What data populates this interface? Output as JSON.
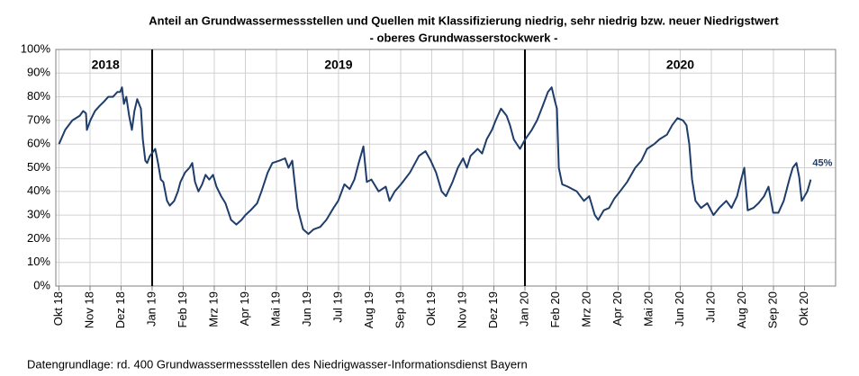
{
  "chart_data": {
    "type": "line",
    "title": "Anteil an Grundwassermessstellen und Quellen mit Klassifizierung niedrig, sehr niedrig bzw. neuer Niedrigstwert",
    "subtitle": "- oberes Grundwasserstockwerk -",
    "source": "Datengrundlage:  rd. 400 Grundwassermessstellen  des Niedrigwasser-Informationsdienst  Bayern",
    "grid": true,
    "xlim": [
      -0.1,
      25
    ],
    "ylim": [
      0,
      100
    ],
    "xticks": [
      {
        "value": 0,
        "label": "Okt 18"
      },
      {
        "value": 1,
        "label": "Nov 18"
      },
      {
        "value": 2,
        "label": "Dez 18"
      },
      {
        "value": 3,
        "label": "Jan 19"
      },
      {
        "value": 4,
        "label": "Feb 19"
      },
      {
        "value": 5,
        "label": "Mrz 19"
      },
      {
        "value": 6,
        "label": "Apr 19"
      },
      {
        "value": 7,
        "label": "Mai 19"
      },
      {
        "value": 8,
        "label": "Jun 19"
      },
      {
        "value": 9,
        "label": "Jul 19"
      },
      {
        "value": 10,
        "label": "Aug 19"
      },
      {
        "value": 11,
        "label": "Sep 19"
      },
      {
        "value": 12,
        "label": "Okt 19"
      },
      {
        "value": 13,
        "label": "Nov 19"
      },
      {
        "value": 14,
        "label": "Dez 19"
      },
      {
        "value": 15,
        "label": "Jan 20"
      },
      {
        "value": 16,
        "label": "Feb 20"
      },
      {
        "value": 17,
        "label": "Mrz 20"
      },
      {
        "value": 18,
        "label": "Apr 20"
      },
      {
        "value": 19,
        "label": "Mai 20"
      },
      {
        "value": 20,
        "label": "Jun 20"
      },
      {
        "value": 21,
        "label": "Jul 20"
      },
      {
        "value": 22,
        "label": "Aug 20"
      },
      {
        "value": 23,
        "label": "Sep 20"
      },
      {
        "value": 24,
        "label": "Okt 20"
      }
    ],
    "yticks": [
      {
        "value": 0,
        "label": "0%"
      },
      {
        "value": 10,
        "label": "10%"
      },
      {
        "value": 20,
        "label": "20%"
      },
      {
        "value": 30,
        "label": "30%"
      },
      {
        "value": 40,
        "label": "40%"
      },
      {
        "value": 50,
        "label": "50%"
      },
      {
        "value": 60,
        "label": "60%"
      },
      {
        "value": 70,
        "label": "70%"
      },
      {
        "value": 80,
        "label": "80%"
      },
      {
        "value": 90,
        "label": "90%"
      },
      {
        "value": 100,
        "label": "100%"
      }
    ],
    "year_dividers": [
      3,
      15
    ],
    "year_labels": [
      {
        "text": "2018",
        "x": 1.5
      },
      {
        "text": "2019",
        "x": 9
      },
      {
        "text": "2020",
        "x": 20
      }
    ],
    "end_label": "45%",
    "x": [
      0,
      0.2,
      0.43,
      0.67,
      0.78,
      0.87,
      0.9,
      1.01,
      1.16,
      1.3,
      1.45,
      1.59,
      1.74,
      1.88,
      1.97,
      2.03,
      2.09,
      2.17,
      2.26,
      2.35,
      2.43,
      2.52,
      2.64,
      2.7,
      2.78,
      2.84,
      2.93,
      3.1,
      3.19,
      3.28,
      3.36,
      3.48,
      3.57,
      3.71,
      3.83,
      3.91,
      4.06,
      4.2,
      4.29,
      4.38,
      4.49,
      4.61,
      4.72,
      4.84,
      4.96,
      5.07,
      5.22,
      5.36,
      5.54,
      5.71,
      5.88,
      6.0,
      6.17,
      6.38,
      6.52,
      6.72,
      6.87,
      7.1,
      7.28,
      7.39,
      7.51,
      7.57,
      7.68,
      7.86,
      8.03,
      8.2,
      8.41,
      8.61,
      8.84,
      8.99,
      9.19,
      9.36,
      9.51,
      9.65,
      9.8,
      9.91,
      10.06,
      10.29,
      10.52,
      10.64,
      10.81,
      11.01,
      11.3,
      11.59,
      11.8,
      11.97,
      12.14,
      12.32,
      12.46,
      12.67,
      12.84,
      13.01,
      13.13,
      13.25,
      13.48,
      13.62,
      13.77,
      13.94,
      14.06,
      14.23,
      14.41,
      14.52,
      14.64,
      14.84,
      15.01,
      15.22,
      15.39,
      15.57,
      15.74,
      15.86,
      15.97,
      16.03,
      16.09,
      16.2,
      16.38,
      16.67,
      16.9,
      17.07,
      17.25,
      17.36,
      17.54,
      17.71,
      17.88,
      18.06,
      18.29,
      18.55,
      18.75,
      18.93,
      19.16,
      19.33,
      19.57,
      19.74,
      19.91,
      20.09,
      20.2,
      20.29,
      20.38,
      20.49,
      20.67,
      20.87,
      21.07,
      21.25,
      21.48,
      21.65,
      21.83,
      21.94,
      22.06,
      22.17,
      22.35,
      22.52,
      22.7,
      22.84,
      22.99,
      23.16,
      23.33,
      23.51,
      23.62,
      23.74,
      23.83,
      23.91,
      24.0,
      24.09,
      24.2
    ],
    "series": [
      {
        "name": "Anteil",
        "color": "#1f3d6b",
        "values": [
          60,
          66,
          70,
          72,
          74,
          73,
          66,
          70,
          74,
          76,
          78,
          80,
          80,
          82,
          82,
          84,
          77,
          80,
          72,
          66,
          74,
          79,
          75,
          62,
          53,
          52,
          55,
          58,
          52,
          45,
          44,
          36,
          34,
          36,
          40,
          44,
          48,
          50,
          52,
          44,
          40,
          43,
          47,
          45,
          47,
          42,
          38,
          35,
          28,
          26,
          28,
          30,
          32,
          35,
          40,
          48,
          52,
          53,
          54,
          50,
          53,
          46,
          33,
          24,
          22,
          24,
          25,
          28,
          33,
          36,
          43,
          41,
          45,
          52,
          59,
          44,
          45,
          40,
          42,
          36,
          40,
          43,
          48,
          55,
          57,
          53,
          48,
          40,
          38,
          44,
          50,
          54,
          50,
          55,
          58,
          56,
          62,
          66,
          70,
          75,
          72,
          68,
          62,
          58,
          62,
          66,
          70,
          76,
          82,
          84,
          78,
          75,
          50,
          43,
          42,
          40,
          36,
          38,
          30,
          28,
          32,
          33,
          37,
          40,
          44,
          50,
          53,
          58,
          60,
          62,
          64,
          68,
          71,
          70,
          68,
          60,
          45,
          36,
          33,
          35,
          30,
          33,
          36,
          33,
          38,
          44,
          50,
          32,
          33,
          35,
          38,
          42,
          31,
          31,
          36,
          45,
          50,
          52,
          46,
          36,
          38,
          40,
          45
        ]
      }
    ]
  }
}
